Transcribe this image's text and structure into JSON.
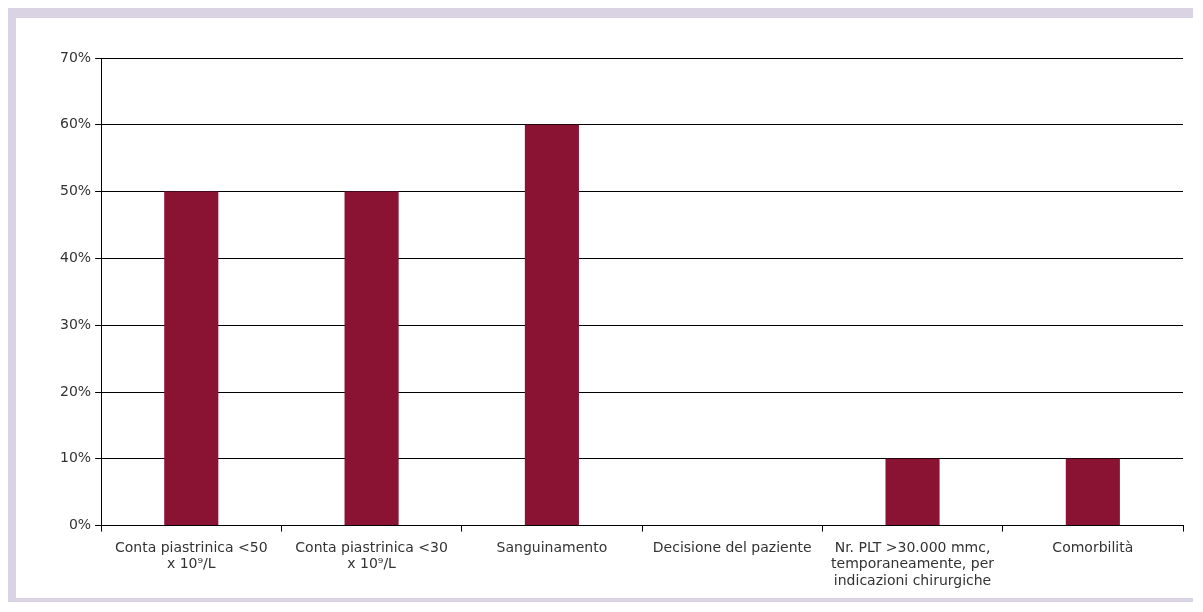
{
  "chart_data": {
    "type": "bar",
    "categories": [
      "Conta piastrinica <50 x 10⁹/L",
      "Conta piastrinica <30 x 10⁹/L",
      "Sanguinamento",
      "Decisione del paziente",
      "Nr. PLT >30.000 mmc, temporaneamente, per indicazioni chirurgiche",
      "Comorbilità"
    ],
    "values": [
      50,
      50,
      60,
      0,
      10,
      10
    ],
    "color": "#8a1232",
    "ylim": [
      0,
      70
    ],
    "yticks": [
      {
        "value": 0,
        "label": "0%"
      },
      {
        "value": 10,
        "label": "10%"
      },
      {
        "value": 20,
        "label": "20%"
      },
      {
        "value": 30,
        "label": "30%"
      },
      {
        "value": 40,
        "label": "40%"
      },
      {
        "value": 50,
        "label": "50%"
      },
      {
        "value": 60,
        "label": "60%"
      },
      {
        "value": 70,
        "label": "70%"
      }
    ],
    "grid": "y",
    "legend": false
  }
}
